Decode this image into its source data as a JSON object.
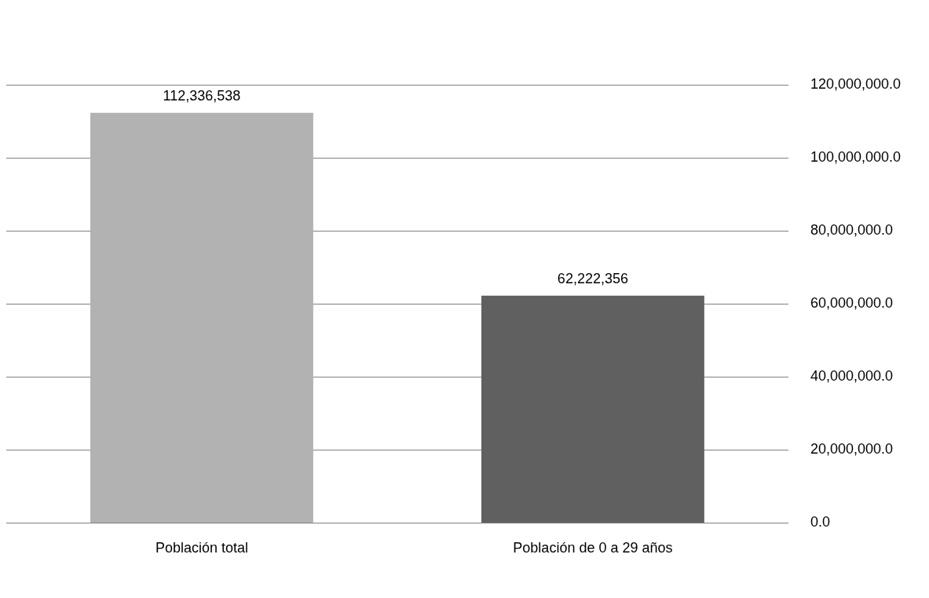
{
  "chart_data": {
    "type": "bar",
    "categories": [
      "Población total",
      "Población de 0 a 29 años"
    ],
    "values": [
      112336538,
      62222356
    ],
    "colors": [
      "#b2b2b2",
      "#606060"
    ],
    "ylim": [
      0,
      120000000
    ],
    "yticks": [
      {
        "value": 0,
        "label": "0.0"
      },
      {
        "value": 20000000,
        "label": "20,000,000.0"
      },
      {
        "value": 40000000,
        "label": "40,000,000.0"
      },
      {
        "value": 60000000,
        "label": "60,000,000.0"
      },
      {
        "value": 80000000,
        "label": "80,000,000.0"
      },
      {
        "value": 100000000,
        "label": "100,000,000.0"
      },
      {
        "value": 120000000,
        "label": "120,000,000.0"
      }
    ],
    "value_labels": [
      "112,336,538",
      "62,222,356"
    ],
    "grid": "y",
    "legend": false
  }
}
